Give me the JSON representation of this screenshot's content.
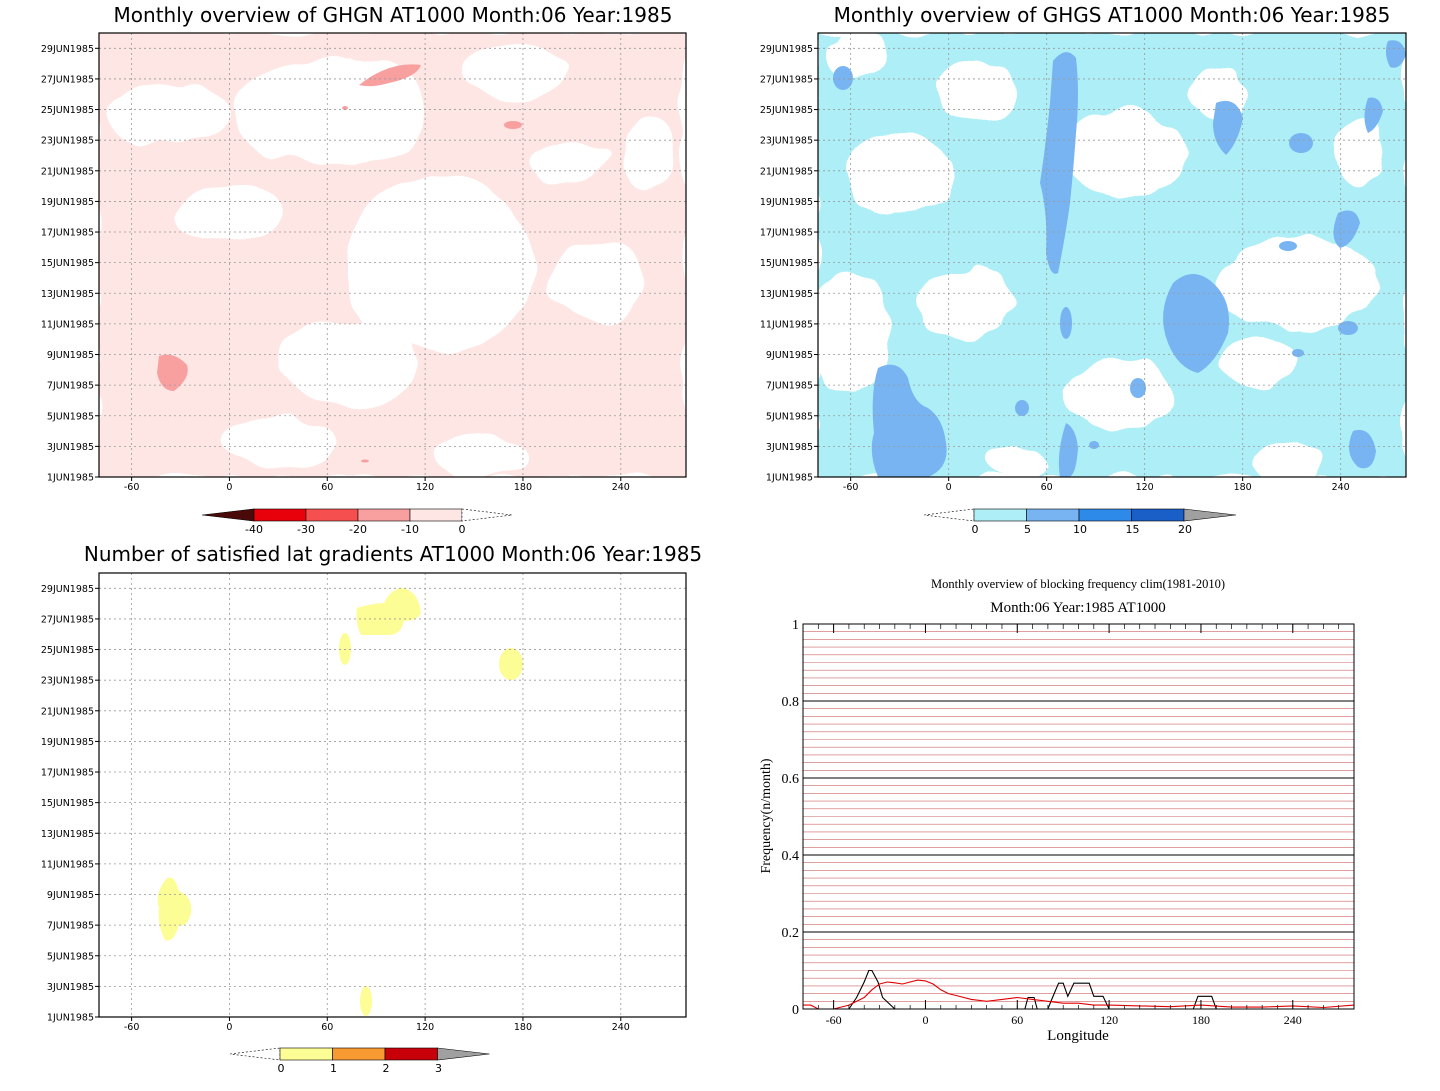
{
  "chart_data": [
    {
      "type": "heatmap",
      "title": "Monthly overview of GHGN AT1000 Month:06 Year:1985",
      "xticks": [
        -60,
        0,
        60,
        120,
        180,
        240
      ],
      "xlim": [
        -80,
        280
      ],
      "yticks": [
        "1JUN1985",
        "3JUN1985",
        "5JUN1985",
        "7JUN1985",
        "9JUN1985",
        "11JUN1985",
        "13JUN1985",
        "15JUN1985",
        "17JUN1985",
        "19JUN1985",
        "21JUN1985",
        "23JUN1985",
        "25JUN1985",
        "27JUN1985",
        "29JUN1985"
      ],
      "ylim": [
        1,
        30
      ],
      "colorbar": {
        "ticks": [
          "-40",
          "-30",
          "-20",
          "-10",
          "0"
        ],
        "colors": [
          "#4a0a0a",
          "#e8000a",
          "#f5504f",
          "#f8a0a0",
          "#fde6e4"
        ]
      },
      "regions": [
        {
          "level": "0 to -10",
          "color": "#fde6e4",
          "centers": [
            [
              -50,
              22
            ],
            [
              20,
              10
            ],
            [
              160,
              20
            ],
            [
              240,
              12
            ],
            [
              100,
              4
            ]
          ]
        },
        {
          "level": "-10 to -20",
          "color": "#f8a0a0",
          "centers": [
            [
              -34,
              8
            ],
            [
              100,
              27
            ],
            [
              172,
              24.3
            ]
          ]
        }
      ]
    },
    {
      "type": "heatmap",
      "title": "Monthly overview of GHGS AT1000 Month:06 Year:1985",
      "xticks": [
        -60,
        0,
        60,
        120,
        180,
        240
      ],
      "xlim": [
        -80,
        280
      ],
      "yticks": [
        "1JUN1985",
        "3JUN1985",
        "5JUN1985",
        "7JUN1985",
        "9JUN1985",
        "11JUN1985",
        "13JUN1985",
        "15JUN1985",
        "17JUN1985",
        "19JUN1985",
        "21JUN1985",
        "23JUN1985",
        "25JUN1985",
        "27JUN1985",
        "29JUN1985"
      ],
      "ylim": [
        1,
        30
      ],
      "colorbar": {
        "ticks": [
          "0",
          "5",
          "10",
          "15",
          "20"
        ],
        "colors": [
          "#aeeef6",
          "#78b4f2",
          "#2e8ae8",
          "#1a5fc8",
          "#a0a0a0"
        ]
      },
      "regions": [
        {
          "level": "0 to 5",
          "color": "#aeeef6",
          "centers": [
            [
              -20,
              15
            ],
            [
              60,
              12
            ],
            [
              160,
              20
            ],
            [
              240,
              8
            ]
          ]
        },
        {
          "level": "5 to 10",
          "color": "#78b4f2",
          "centers": [
            [
              67,
              21
            ],
            [
              146,
              11
            ],
            [
              -26,
              5
            ],
            [
              77,
              3
            ],
            [
              267,
              26
            ],
            [
              245,
              23
            ]
          ]
        }
      ]
    },
    {
      "type": "heatmap",
      "title": "Number of satisfied lat gradients AT1000 Month:06 Year:1985",
      "xticks": [
        -60,
        0,
        60,
        120,
        180,
        240
      ],
      "xlim": [
        -80,
        280
      ],
      "yticks": [
        "1JUN1985",
        "3JUN1985",
        "5JUN1985",
        "7JUN1985",
        "9JUN1985",
        "11JUN1985",
        "13JUN1985",
        "15JUN1985",
        "17JUN1985",
        "19JUN1985",
        "21JUN1985",
        "23JUN1985",
        "25JUN1985",
        "27JUN1985",
        "29JUN1985"
      ],
      "ylim": [
        1,
        30
      ],
      "colorbar": {
        "ticks": [
          "0",
          "1",
          "2",
          "3"
        ],
        "colors": [
          "#fdfd96",
          "#f89a32",
          "#c8000a",
          "#a0a0a0"
        ]
      },
      "regions": [
        {
          "level": "0 to 1",
          "color": "#fdfd96",
          "centers": [
            [
              -34,
              8
            ],
            [
              100,
              27.5
            ],
            [
              71,
              25
            ],
            [
              173,
              24
            ],
            [
              84,
              2
            ]
          ]
        }
      ]
    },
    {
      "type": "line",
      "title": "Monthly overview of blocking frequency clim(1981-2010)",
      "subtitle": "Month:06 Year:1985  AT1000",
      "xlabel": "Longitude",
      "ylabel": "Frequency(n/month)",
      "xlim": [
        -80,
        280
      ],
      "ylim": [
        0,
        1
      ],
      "xticks": [
        -60,
        0,
        60,
        120,
        180,
        240
      ],
      "yticks": [
        0,
        0.2,
        0.4,
        0.6,
        0.8,
        1
      ],
      "grid": true,
      "series": [
        {
          "color": "#000000",
          "x": [
            -80,
            -70,
            -50,
            -45,
            -40,
            -37,
            -35,
            -31,
            -28,
            -20,
            0,
            30,
            50,
            65,
            67,
            69,
            71,
            73,
            80,
            83,
            87,
            90,
            93,
            97,
            100,
            103,
            107,
            110,
            116,
            120,
            130,
            175,
            178,
            182,
            187,
            190,
            200,
            280
          ],
          "y": [
            0,
            0,
            0,
            0.03,
            0.07,
            0.1,
            0.1,
            0.07,
            0.03,
            0,
            0,
            0,
            0,
            0,
            0.03,
            0.03,
            0.03,
            0,
            0,
            0.03,
            0.067,
            0.067,
            0.033,
            0.067,
            0.067,
            0.067,
            0.067,
            0.033,
            0.033,
            0,
            0,
            0,
            0.033,
            0.033,
            0.033,
            0,
            0,
            0
          ]
        },
        {
          "color": "#e00000",
          "x": [
            -80,
            -75,
            -70,
            -60,
            -50,
            -40,
            -35,
            -30,
            -25,
            -20,
            -15,
            -10,
            -5,
            0,
            5,
            10,
            15,
            20,
            30,
            40,
            50,
            60,
            70,
            80,
            90,
            100,
            110,
            120,
            140,
            160,
            180,
            200,
            220,
            240,
            260,
            280
          ],
          "y": [
            0.01,
            0.01,
            0,
            0,
            0.01,
            0.03,
            0.05,
            0.065,
            0.07,
            0.068,
            0.065,
            0.07,
            0.075,
            0.073,
            0.065,
            0.05,
            0.04,
            0.035,
            0.025,
            0.02,
            0.025,
            0.03,
            0.025,
            0.02,
            0.015,
            0.015,
            0.01,
            0.01,
            0.008,
            0.006,
            0.01,
            0.005,
            0.005,
            0.008,
            0.004,
            0.01
          ]
        }
      ]
    }
  ]
}
